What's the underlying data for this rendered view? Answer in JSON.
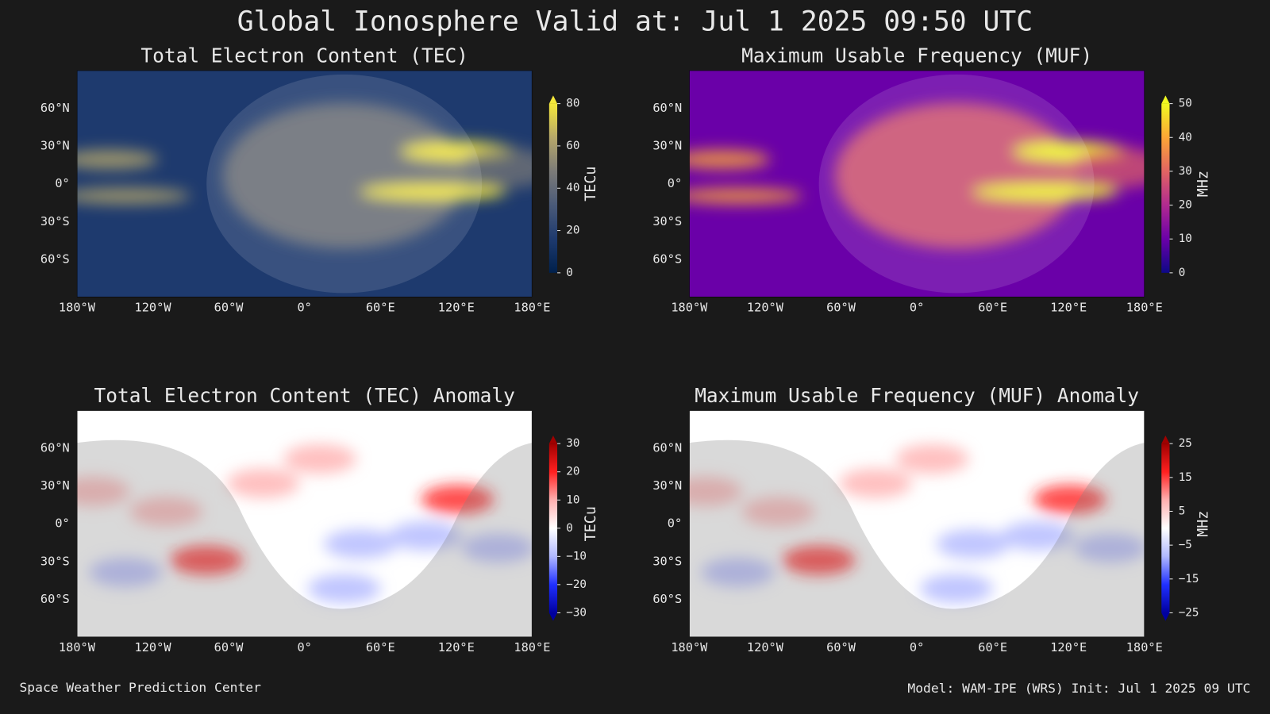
{
  "title": "Global Ionosphere Valid at: Jul 1 2025 09:50 UTC",
  "panels": [
    {
      "title": "Total Electron Content (TEC)",
      "lon_labels": [
        "180°W",
        "120°W",
        "60°W",
        "0°",
        "60°E",
        "120°E",
        "180°E"
      ],
      "lat_labels": [
        "60°N",
        "30°N",
        "0°",
        "30°S",
        "60°S"
      ],
      "colorbar": {
        "label": "TECu",
        "lim": [
          0,
          80
        ],
        "ticks": [
          0,
          20,
          40,
          60,
          80
        ],
        "extend": "max",
        "colors": [
          "#00204c",
          "#1e3a6e",
          "#4a5a78",
          "#7c7b78",
          "#b7a86a",
          "#f5e83a"
        ]
      }
    },
    {
      "title": "Maximum Usable Frequency (MUF)",
      "lon_labels": [
        "180°W",
        "120°W",
        "60°W",
        "0°",
        "60°E",
        "120°E",
        "180°E"
      ],
      "lat_labels": [
        "60°N",
        "30°N",
        "0°",
        "30°S",
        "60°S"
      ],
      "colorbar": {
        "label": "MHz",
        "lim": [
          0,
          50
        ],
        "ticks": [
          0,
          10,
          20,
          30,
          40,
          50
        ],
        "extend": "max",
        "colors": [
          "#0d0887",
          "#6a00a8",
          "#b12a90",
          "#e16462",
          "#fca636",
          "#f0f921"
        ]
      }
    },
    {
      "title": "Total Electron Content (TEC) Anomaly",
      "lon_labels": [
        "180°W",
        "120°W",
        "60°W",
        "0°",
        "60°E",
        "120°E",
        "180°E"
      ],
      "lat_labels": [
        "60°N",
        "30°N",
        "0°",
        "30°S",
        "60°S"
      ],
      "colorbar": {
        "label": "TECu",
        "lim": [
          -30,
          30
        ],
        "extend": "both",
        "ticks": [
          {
            "value": -30,
            "label": "−30"
          },
          {
            "value": -20,
            "label": "−20"
          },
          {
            "value": -10,
            "label": "−10"
          },
          0,
          10,
          20,
          30
        ],
        "colors": [
          "#0000a0",
          "#2030ff",
          "#b0b8ff",
          "#ffffff",
          "#ffb0b0",
          "#ff2020",
          "#a00000"
        ]
      }
    },
    {
      "title": "Maximum Usable Frequency (MUF) Anomaly",
      "lon_labels": [
        "180°W",
        "120°W",
        "60°W",
        "0°",
        "60°E",
        "120°E",
        "180°E"
      ],
      "lat_labels": [
        "60°N",
        "30°N",
        "0°",
        "30°S",
        "60°S"
      ],
      "colorbar": {
        "label": "MHz",
        "lim": [
          -25,
          25
        ],
        "extend": "both",
        "ticks": [
          {
            "value": -25,
            "label": "−25"
          },
          {
            "value": -15,
            "label": "−15"
          },
          {
            "value": -5,
            "label": "−5"
          },
          5,
          15,
          25
        ],
        "colors": [
          "#0000a0",
          "#2030ff",
          "#b0b8ff",
          "#ffffff",
          "#ffb0b0",
          "#ff2020",
          "#a00000"
        ]
      }
    }
  ],
  "footer": {
    "left": "Space Weather Prediction Center",
    "right": "Model: WAM-IPE (WRS) Init: Jul 1 2025 09 UTC"
  }
}
